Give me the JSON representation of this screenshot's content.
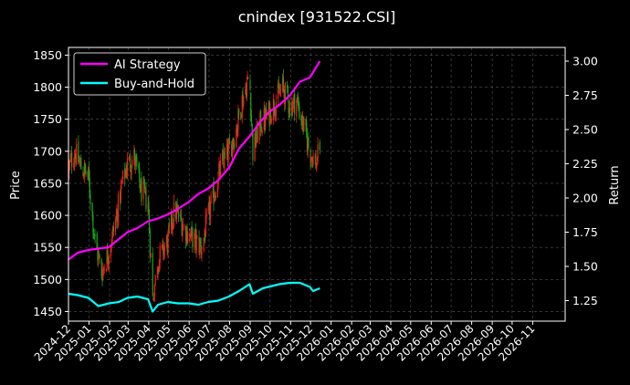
{
  "chart_data": {
    "type": "line",
    "title": "cnindex [931522.CSI]",
    "ylabel_left": "Price",
    "ylabel_right": "Return",
    "ylim_left": [
      1435,
      1862
    ],
    "ylim_right": [
      1.1,
      3.1
    ],
    "xlim": [
      "2024-12-01",
      "2026-12-20"
    ],
    "x_ticks": [
      "2024-12",
      "2025-01",
      "2025-02",
      "2025-03",
      "2025-04",
      "2025-05",
      "2025-06",
      "2025-07",
      "2025-08",
      "2025-09",
      "2025-10",
      "2025-11",
      "2025-12",
      "2026-01",
      "2026-02",
      "2026-03",
      "2026-04",
      "2026-05",
      "2026-06",
      "2026-07",
      "2026-08",
      "2026-09",
      "2026-10",
      "2026-11"
    ],
    "y_ticks_left": [
      1450,
      1500,
      1550,
      1600,
      1650,
      1700,
      1750,
      1800,
      1850
    ],
    "y_ticks_right": [
      "1.25",
      "1.50",
      "1.75",
      "2.00",
      "2.25",
      "2.50",
      "2.75",
      "3.00"
    ],
    "grid": true,
    "legend_position": "top-left",
    "colors": {
      "background": "#000000",
      "ai_strategy": "#ff00ff",
      "buy_and_hold": "#00ffff",
      "candle_up": "#ff1a1a",
      "candle_down": "#1aa31a",
      "grid": "#555555",
      "text": "#ffffff"
    },
    "series": [
      {
        "name": "AI Strategy",
        "axis": "right",
        "points": [
          [
            "2024-12-01",
            1.55
          ],
          [
            "2024-12-15",
            1.6
          ],
          [
            "2024-12-31",
            1.62
          ],
          [
            "2025-01-15",
            1.63
          ],
          [
            "2025-01-31",
            1.64
          ],
          [
            "2025-02-15",
            1.7
          ],
          [
            "2025-02-28",
            1.75
          ],
          [
            "2025-03-15",
            1.78
          ],
          [
            "2025-03-31",
            1.83
          ],
          [
            "2025-04-15",
            1.85
          ],
          [
            "2025-04-30",
            1.88
          ],
          [
            "2025-05-15",
            1.92
          ],
          [
            "2025-05-31",
            1.97
          ],
          [
            "2025-06-15",
            2.03
          ],
          [
            "2025-06-30",
            2.07
          ],
          [
            "2025-07-15",
            2.13
          ],
          [
            "2025-07-31",
            2.22
          ],
          [
            "2025-08-15",
            2.36
          ],
          [
            "2025-08-31",
            2.45
          ],
          [
            "2025-09-15",
            2.55
          ],
          [
            "2025-09-30",
            2.63
          ],
          [
            "2025-10-15",
            2.68
          ],
          [
            "2025-10-31",
            2.75
          ],
          [
            "2025-11-15",
            2.85
          ],
          [
            "2025-11-30",
            2.88
          ],
          [
            "2025-12-15",
            3.0
          ]
        ]
      },
      {
        "name": "Buy-and-Hold",
        "axis": "right",
        "points": [
          [
            "2024-12-01",
            1.3
          ],
          [
            "2024-12-15",
            1.29
          ],
          [
            "2024-12-31",
            1.27
          ],
          [
            "2025-01-15",
            1.21
          ],
          [
            "2025-01-31",
            1.23
          ],
          [
            "2025-02-15",
            1.24
          ],
          [
            "2025-02-28",
            1.27
          ],
          [
            "2025-03-15",
            1.28
          ],
          [
            "2025-03-31",
            1.26
          ],
          [
            "2025-04-07",
            1.17
          ],
          [
            "2025-04-15",
            1.22
          ],
          [
            "2025-04-30",
            1.24
          ],
          [
            "2025-05-15",
            1.23
          ],
          [
            "2025-05-31",
            1.23
          ],
          [
            "2025-06-15",
            1.22
          ],
          [
            "2025-06-30",
            1.24
          ],
          [
            "2025-07-15",
            1.25
          ],
          [
            "2025-07-31",
            1.28
          ],
          [
            "2025-08-15",
            1.32
          ],
          [
            "2025-08-31",
            1.37
          ],
          [
            "2025-09-05",
            1.3
          ],
          [
            "2025-09-20",
            1.34
          ],
          [
            "2025-10-15",
            1.37
          ],
          [
            "2025-10-31",
            1.38
          ],
          [
            "2025-11-15",
            1.38
          ],
          [
            "2025-11-30",
            1.35
          ],
          [
            "2025-12-05",
            1.32
          ],
          [
            "2025-12-15",
            1.34
          ]
        ]
      }
    ],
    "price_path": [
      [
        "2024-12-01",
        1670
      ],
      [
        "2024-12-10",
        1700
      ],
      [
        "2024-12-20",
        1675
      ],
      [
        "2024-12-31",
        1660
      ],
      [
        "2025-01-10",
        1560
      ],
      [
        "2025-01-20",
        1510
      ],
      [
        "2025-01-31",
        1545
      ],
      [
        "2025-02-10",
        1590
      ],
      [
        "2025-02-20",
        1650
      ],
      [
        "2025-02-28",
        1680
      ],
      [
        "2025-03-10",
        1690
      ],
      [
        "2025-03-20",
        1640
      ],
      [
        "2025-03-31",
        1620
      ],
      [
        "2025-04-07",
        1470
      ],
      [
        "2025-04-15",
        1530
      ],
      [
        "2025-04-30",
        1560
      ],
      [
        "2025-05-10",
        1610
      ],
      [
        "2025-05-20",
        1590
      ],
      [
        "2025-05-31",
        1570
      ],
      [
        "2025-06-10",
        1560
      ],
      [
        "2025-06-20",
        1550
      ],
      [
        "2025-06-30",
        1600
      ],
      [
        "2025-07-10",
        1640
      ],
      [
        "2025-07-20",
        1680
      ],
      [
        "2025-07-31",
        1700
      ],
      [
        "2025-08-10",
        1730
      ],
      [
        "2025-08-20",
        1780
      ],
      [
        "2025-08-31",
        1820
      ],
      [
        "2025-09-05",
        1700
      ],
      [
        "2025-09-15",
        1740
      ],
      [
        "2025-09-30",
        1760
      ],
      [
        "2025-10-10",
        1780
      ],
      [
        "2025-10-20",
        1800
      ],
      [
        "2025-10-31",
        1770
      ],
      [
        "2025-11-10",
        1780
      ],
      [
        "2025-11-20",
        1740
      ],
      [
        "2025-11-30",
        1700
      ],
      [
        "2025-12-10",
        1680
      ],
      [
        "2025-12-15",
        1710
      ]
    ]
  }
}
